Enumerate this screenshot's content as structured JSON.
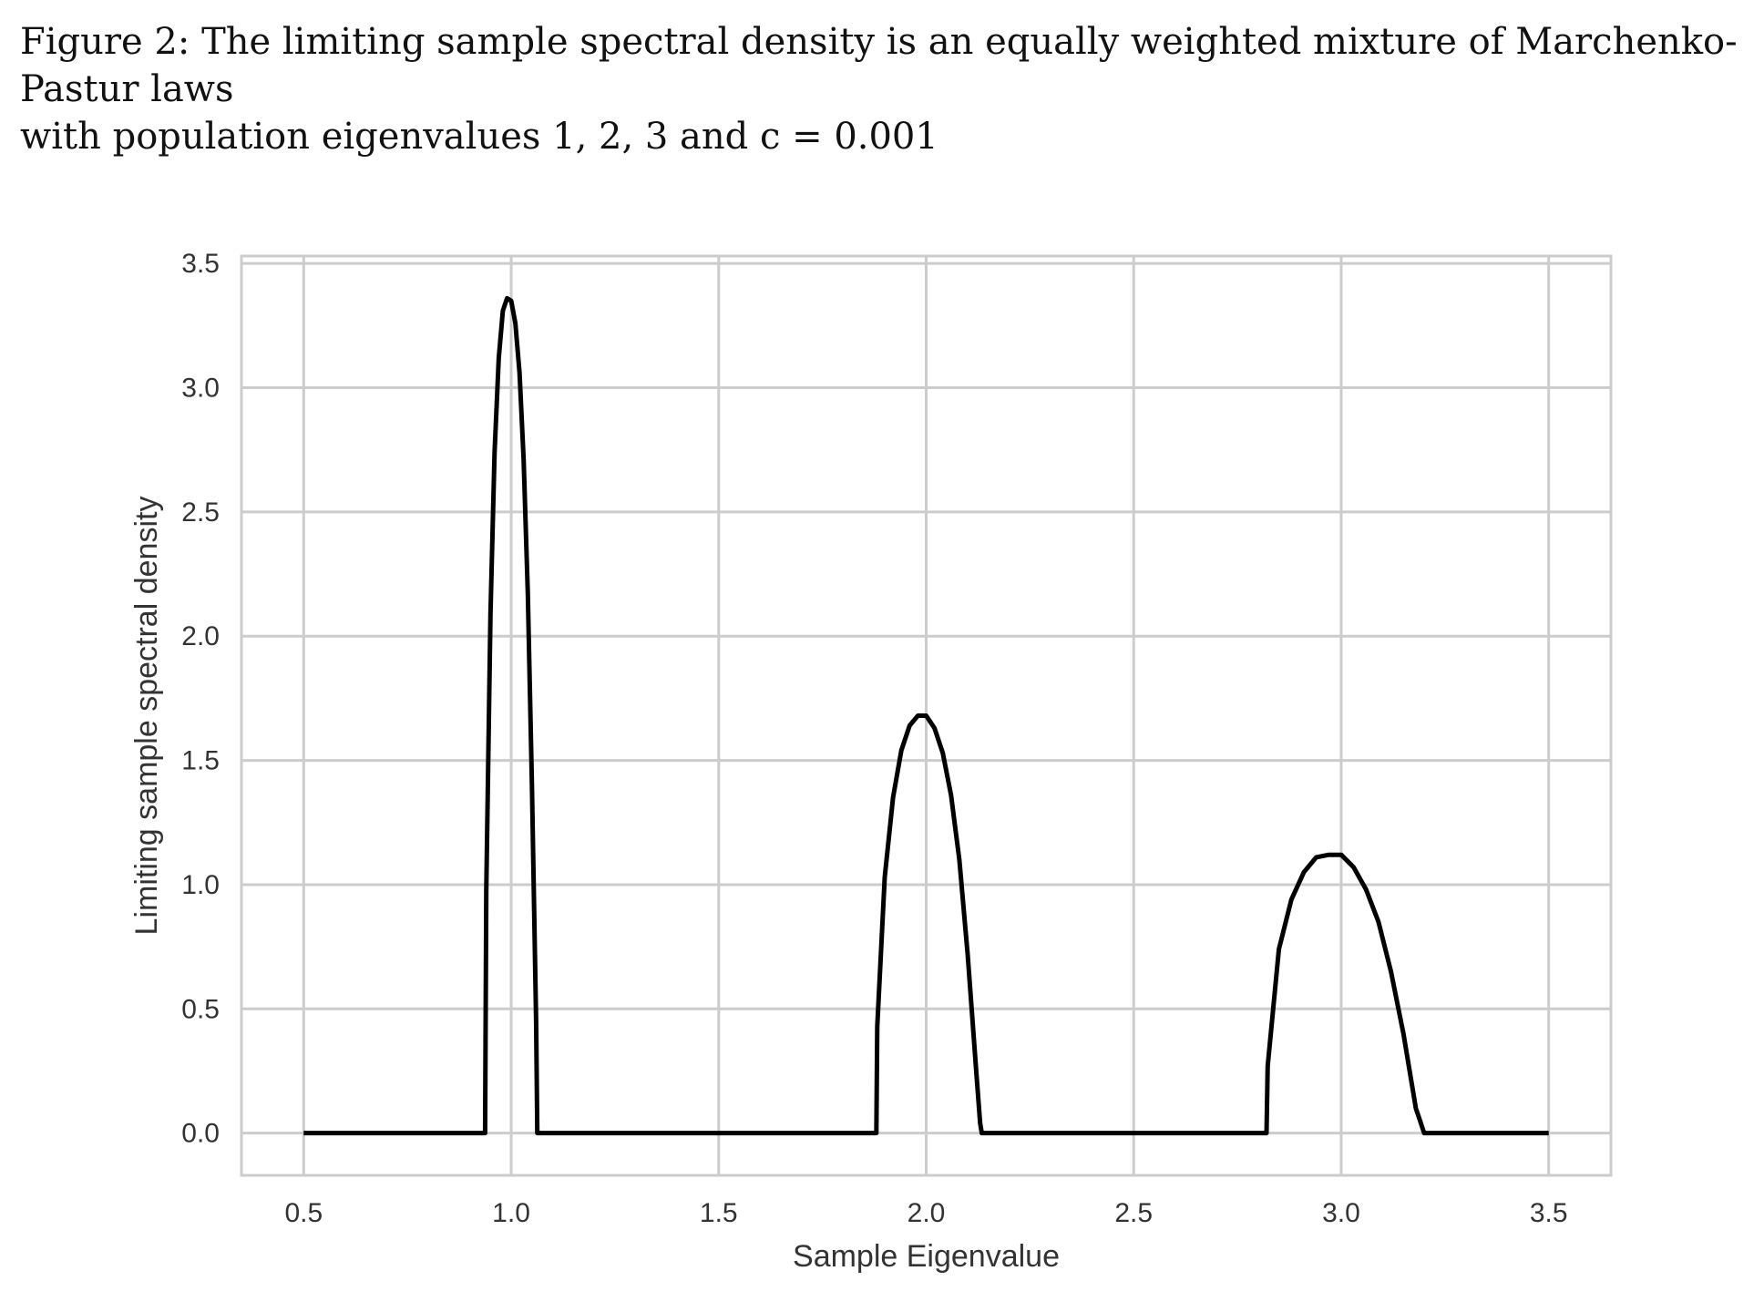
{
  "caption": {
    "line1": "Figure 2: The limiting sample spectral density is an equally weighted mixture of Marchenko-Pastur laws",
    "line2": "with population eigenvalues 1, 2, 3 and c = 0.001"
  },
  "chart_data": {
    "type": "line",
    "title": "",
    "xlabel": "Sample Eigenvalue",
    "ylabel": "Limiting sample spectral density",
    "xlim": [
      0.35,
      3.65
    ],
    "ylim": [
      -0.17,
      3.53
    ],
    "xticks": [
      0.5,
      1.0,
      1.5,
      2.0,
      2.5,
      3.0,
      3.5
    ],
    "xtick_labels": [
      "0.5",
      "1.0",
      "1.5",
      "2.0",
      "2.5",
      "3.0",
      "3.5"
    ],
    "yticks": [
      0.0,
      0.5,
      1.0,
      1.5,
      2.0,
      2.5,
      3.0,
      3.5
    ],
    "ytick_labels": [
      "0.0",
      "0.5",
      "1.0",
      "1.5",
      "2.0",
      "2.5",
      "3.0",
      "3.5"
    ],
    "grid": true,
    "line_color": "#000000",
    "grid_color": "#cccccc",
    "series": [
      {
        "x": [
          0.5,
          0.937,
          0.94,
          0.95,
          0.96,
          0.97,
          0.98,
          0.99,
          1.0,
          1.01,
          1.02,
          1.03,
          1.04,
          1.05,
          1.06,
          1.063,
          1.88,
          1.882,
          1.9,
          1.92,
          1.94,
          1.96,
          1.98,
          2.0,
          2.02,
          2.04,
          2.06,
          2.08,
          2.1,
          2.12,
          2.13,
          2.134,
          2.82,
          2.823,
          2.85,
          2.88,
          2.91,
          2.94,
          2.97,
          3.0,
          3.03,
          3.06,
          3.09,
          3.12,
          3.15,
          3.18,
          3.19,
          3.2,
          3.5
        ],
        "y": [
          0.0,
          0.0,
          0.98,
          2.09,
          2.74,
          3.12,
          3.31,
          3.36,
          3.35,
          3.26,
          3.06,
          2.71,
          2.17,
          1.4,
          0.45,
          0.0,
          0.0,
          0.43,
          1.03,
          1.35,
          1.54,
          1.64,
          1.68,
          1.68,
          1.63,
          1.53,
          1.36,
          1.1,
          0.72,
          0.26,
          0.04,
          0.0,
          0.0,
          0.27,
          0.74,
          0.94,
          1.05,
          1.11,
          1.12,
          1.12,
          1.07,
          0.98,
          0.85,
          0.65,
          0.4,
          0.1,
          0.05,
          0.0,
          0.0
        ]
      }
    ]
  }
}
